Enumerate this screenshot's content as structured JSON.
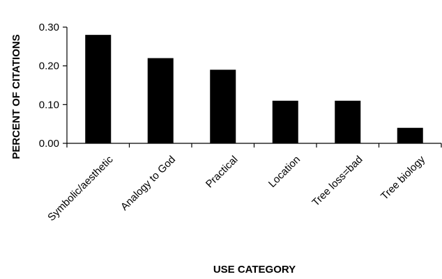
{
  "chart_data": {
    "type": "bar",
    "title": "",
    "xlabel": "USE CATEGORY",
    "ylabel": "PERCENT OF CITATIONS",
    "categories": [
      "Symbolic/aesthetic",
      "Analogy to God",
      "Practical",
      "Location",
      "Tree loss=bad",
      "Tree biology"
    ],
    "values": [
      0.28,
      0.22,
      0.19,
      0.11,
      0.11,
      0.04
    ],
    "ylim": [
      0,
      0.3
    ],
    "yticks": [
      "0.00",
      "0.10",
      "0.20",
      "0.30"
    ],
    "bar_color": "#000000",
    "grid": false,
    "legend": "none"
  }
}
